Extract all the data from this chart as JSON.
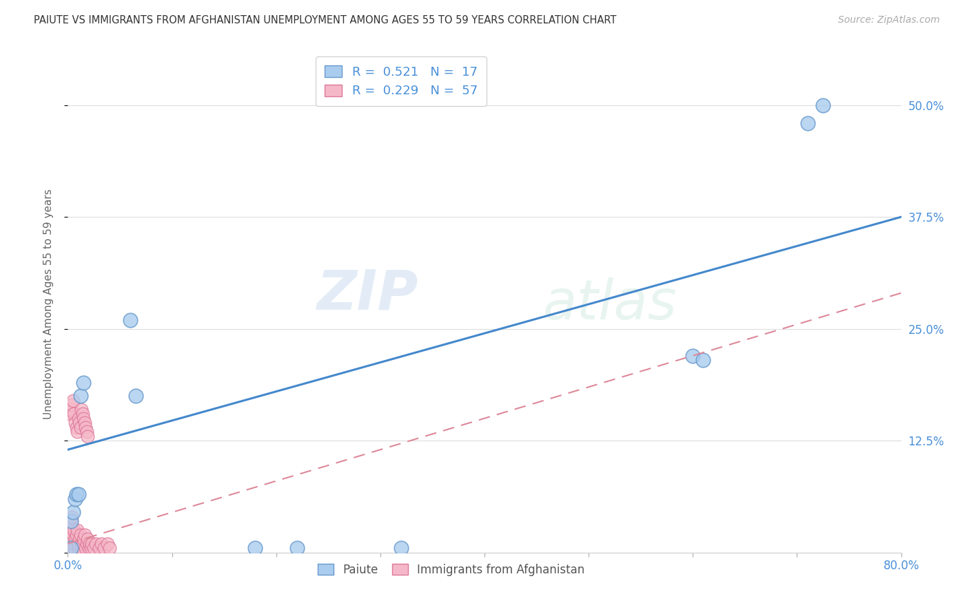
{
  "title": "PAIUTE VS IMMIGRANTS FROM AFGHANISTAN UNEMPLOYMENT AMONG AGES 55 TO 59 YEARS CORRELATION CHART",
  "source": "Source: ZipAtlas.com",
  "ylabel": "Unemployment Among Ages 55 to 59 years",
  "xlim": [
    0,
    0.8
  ],
  "ylim": [
    0,
    0.5556
  ],
  "yticks": [
    0.0,
    0.125,
    0.25,
    0.375,
    0.5
  ],
  "ytick_labels": [
    "",
    "12.5%",
    "25.0%",
    "37.5%",
    "50.0%"
  ],
  "xtick_labels": [
    "0.0%",
    "",
    "",
    "",
    "",
    "",
    "",
    "",
    "80.0%"
  ],
  "paiute_color": "#aaccee",
  "paiute_edge_color": "#6699cc",
  "afghanistan_color": "#f5b8c8",
  "afghanistan_edge_color": "#dd7799",
  "regression_blue_color": "#4488cc",
  "regression_pink_color": "#dd8899",
  "legend_label_1": "R =  0.521   N =  17",
  "legend_label_2": "R =  0.229   N =  57",
  "legend_series_1": "Paiute",
  "legend_series_2": "Immigrants from Afghanistan",
  "paiute_x": [
    0.003,
    0.005,
    0.007,
    0.008,
    0.01,
    0.012,
    0.015,
    0.06,
    0.065,
    0.22,
    0.6,
    0.61,
    0.71,
    0.725,
    0.18,
    0.003,
    0.32
  ],
  "paiute_y": [
    0.035,
    0.045,
    0.06,
    0.065,
    0.065,
    0.175,
    0.19,
    0.26,
    0.175,
    0.005,
    0.22,
    0.215,
    0.48,
    0.5,
    0.005,
    0.005,
    0.005
  ],
  "afghanistan_x": [
    0.0,
    0.001,
    0.001,
    0.002,
    0.002,
    0.003,
    0.003,
    0.004,
    0.004,
    0.005,
    0.005,
    0.006,
    0.006,
    0.007,
    0.007,
    0.008,
    0.009,
    0.01,
    0.01,
    0.011,
    0.012,
    0.013,
    0.014,
    0.015,
    0.016,
    0.017,
    0.018,
    0.019,
    0.02,
    0.021,
    0.022,
    0.023,
    0.025,
    0.027,
    0.03,
    0.032,
    0.035,
    0.038,
    0.04,
    0.002,
    0.003,
    0.004,
    0.005,
    0.006,
    0.007,
    0.008,
    0.009,
    0.01,
    0.011,
    0.012,
    0.013,
    0.014,
    0.015,
    0.016,
    0.017,
    0.018,
    0.019
  ],
  "afghanistan_y": [
    0.005,
    0.01,
    0.015,
    0.02,
    0.025,
    0.03,
    0.035,
    0.04,
    0.01,
    0.015,
    0.02,
    0.025,
    0.005,
    0.01,
    0.015,
    0.02,
    0.025,
    0.005,
    0.01,
    0.015,
    0.02,
    0.005,
    0.01,
    0.015,
    0.02,
    0.005,
    0.01,
    0.015,
    0.005,
    0.01,
    0.005,
    0.01,
    0.005,
    0.01,
    0.005,
    0.01,
    0.005,
    0.01,
    0.005,
    0.155,
    0.16,
    0.165,
    0.17,
    0.155,
    0.145,
    0.14,
    0.135,
    0.15,
    0.145,
    0.14,
    0.16,
    0.155,
    0.15,
    0.145,
    0.14,
    0.135,
    0.13
  ],
  "blue_line_x": [
    0.0,
    0.8
  ],
  "blue_line_y": [
    0.115,
    0.375
  ],
  "pink_line_x": [
    0.0,
    0.8
  ],
  "pink_line_y": [
    0.01,
    0.29
  ],
  "watermark_zip": "ZIP",
  "watermark_atlas": "atlas",
  "background_color": "#ffffff",
  "grid_color": "#dddddd",
  "title_color": "#333333",
  "tick_color": "#4a90d9",
  "ylabel_color": "#666666"
}
